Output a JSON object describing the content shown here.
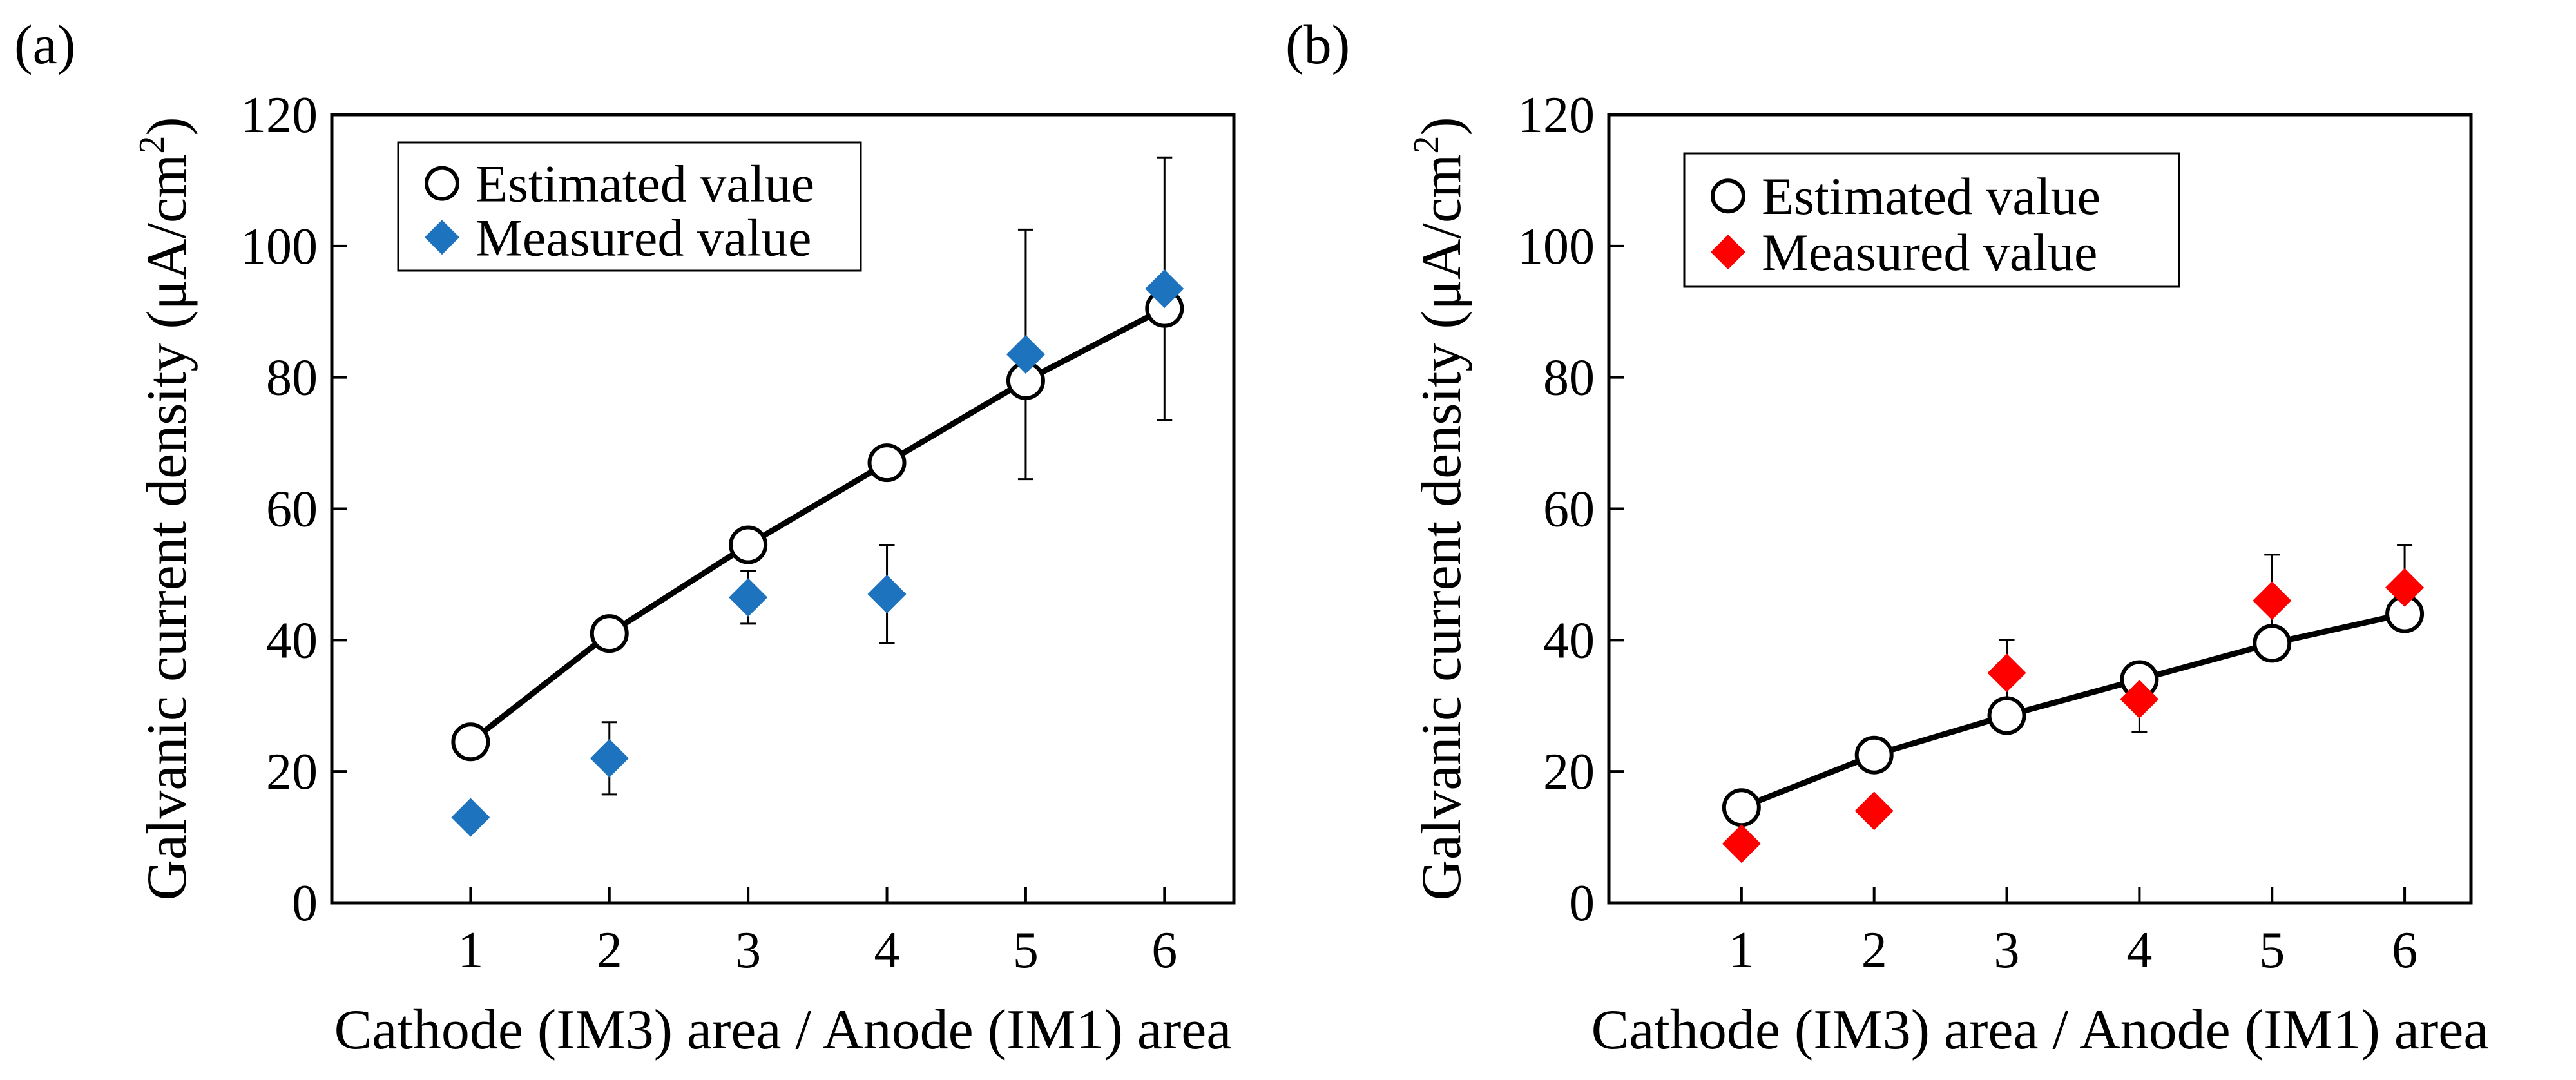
{
  "chart_data": [
    {
      "panel_label": "(a)",
      "type": "scatter",
      "x": [
        1,
        2,
        3,
        4,
        5,
        6
      ],
      "series": [
        {
          "name": "Estimated value",
          "marker": "open-circle",
          "line": true,
          "color": "#000000",
          "values": [
            24.5,
            41.0,
            54.5,
            67.0,
            79.5,
            90.5
          ]
        },
        {
          "name": "Measured value",
          "marker": "filled-diamond",
          "line": false,
          "color": "#1e73be",
          "values": [
            13.0,
            22.0,
            46.5,
            47.0,
            83.5,
            93.5
          ],
          "error": [
            0,
            5.5,
            4.0,
            7.5,
            19.0,
            20.0
          ]
        }
      ],
      "xlabel": "Cathode (IM3) area / Anode (IM1) area",
      "ylabel": "Galvanic current density (μA/cm",
      "ylabel_superscript": "2",
      "ylabel_close": ")",
      "xticks": [
        "1",
        "2",
        "3",
        "4",
        "5",
        "6"
      ],
      "yticks": [
        "0",
        "20",
        "40",
        "60",
        "80",
        "100",
        "120"
      ],
      "xlim": [
        0,
        6.5
      ],
      "ylim": [
        0,
        120
      ],
      "legend_position": "top-left",
      "grid": false
    },
    {
      "panel_label": "(b)",
      "type": "scatter",
      "x": [
        1,
        2,
        3,
        4,
        5,
        6
      ],
      "series": [
        {
          "name": "Estimated value",
          "marker": "open-circle",
          "line": true,
          "color": "#000000",
          "values": [
            14.5,
            22.5,
            28.5,
            34.0,
            39.5,
            44.0
          ]
        },
        {
          "name": "Measured value",
          "marker": "filled-diamond",
          "line": false,
          "color": "#ff0000",
          "values": [
            9.0,
            14.0,
            35.0,
            31.0,
            46.0,
            48.0
          ],
          "error": [
            1.5,
            0,
            5.0,
            5.0,
            7.0,
            6.5
          ]
        }
      ],
      "xlabel": "Cathode (IM3) area / Anode (IM1) area",
      "ylabel": "Galvanic current density (μA/cm",
      "ylabel_superscript": "2",
      "ylabel_close": ")",
      "xticks": [
        "1",
        "2",
        "3",
        "4",
        "5",
        "6"
      ],
      "yticks": [
        "0",
        "20",
        "40",
        "60",
        "80",
        "100",
        "120"
      ],
      "xlim": [
        0,
        6.5
      ],
      "ylim": [
        0,
        120
      ],
      "legend_position": "top-left",
      "grid": false
    }
  ]
}
